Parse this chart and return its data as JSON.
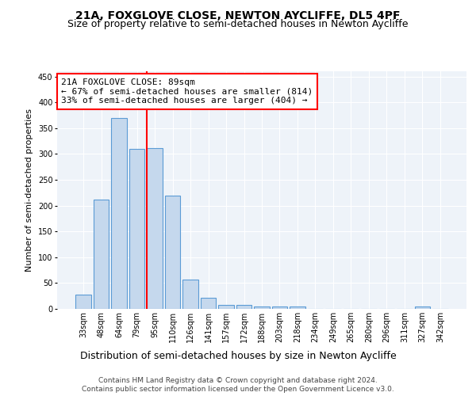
{
  "title": "21A, FOXGLOVE CLOSE, NEWTON AYCLIFFE, DL5 4PF",
  "subtitle": "Size of property relative to semi-detached houses in Newton Aycliffe",
  "xlabel": "Distribution of semi-detached houses by size in Newton Aycliffe",
  "ylabel": "Number of semi-detached properties",
  "categories": [
    "33sqm",
    "48sqm",
    "64sqm",
    "79sqm",
    "95sqm",
    "110sqm",
    "126sqm",
    "141sqm",
    "157sqm",
    "172sqm",
    "188sqm",
    "203sqm",
    "218sqm",
    "234sqm",
    "249sqm",
    "265sqm",
    "280sqm",
    "296sqm",
    "311sqm",
    "327sqm",
    "342sqm"
  ],
  "values": [
    28,
    212,
    370,
    310,
    311,
    219,
    56,
    22,
    8,
    7,
    5,
    5,
    5,
    0,
    0,
    0,
    0,
    0,
    0,
    5,
    0
  ],
  "bar_color": "#c5d8ed",
  "bar_edge_color": "#5b9bd5",
  "vline_color": "red",
  "vline_x": 3.57,
  "annotation_text": "21A FOXGLOVE CLOSE: 89sqm\n← 67% of semi-detached houses are smaller (814)\n33% of semi-detached houses are larger (404) →",
  "annotation_box_color": "white",
  "annotation_box_edge_color": "red",
  "ylim": [
    0,
    460
  ],
  "yticks": [
    0,
    50,
    100,
    150,
    200,
    250,
    300,
    350,
    400,
    450
  ],
  "footer_line1": "Contains HM Land Registry data © Crown copyright and database right 2024.",
  "footer_line2": "Contains public sector information licensed under the Open Government Licence v3.0.",
  "bg_color": "#eef3f9",
  "title_fontsize": 10,
  "subtitle_fontsize": 9,
  "tick_fontsize": 7,
  "ylabel_fontsize": 8,
  "xlabel_fontsize": 9,
  "annotation_fontsize": 8,
  "footer_fontsize": 6.5
}
